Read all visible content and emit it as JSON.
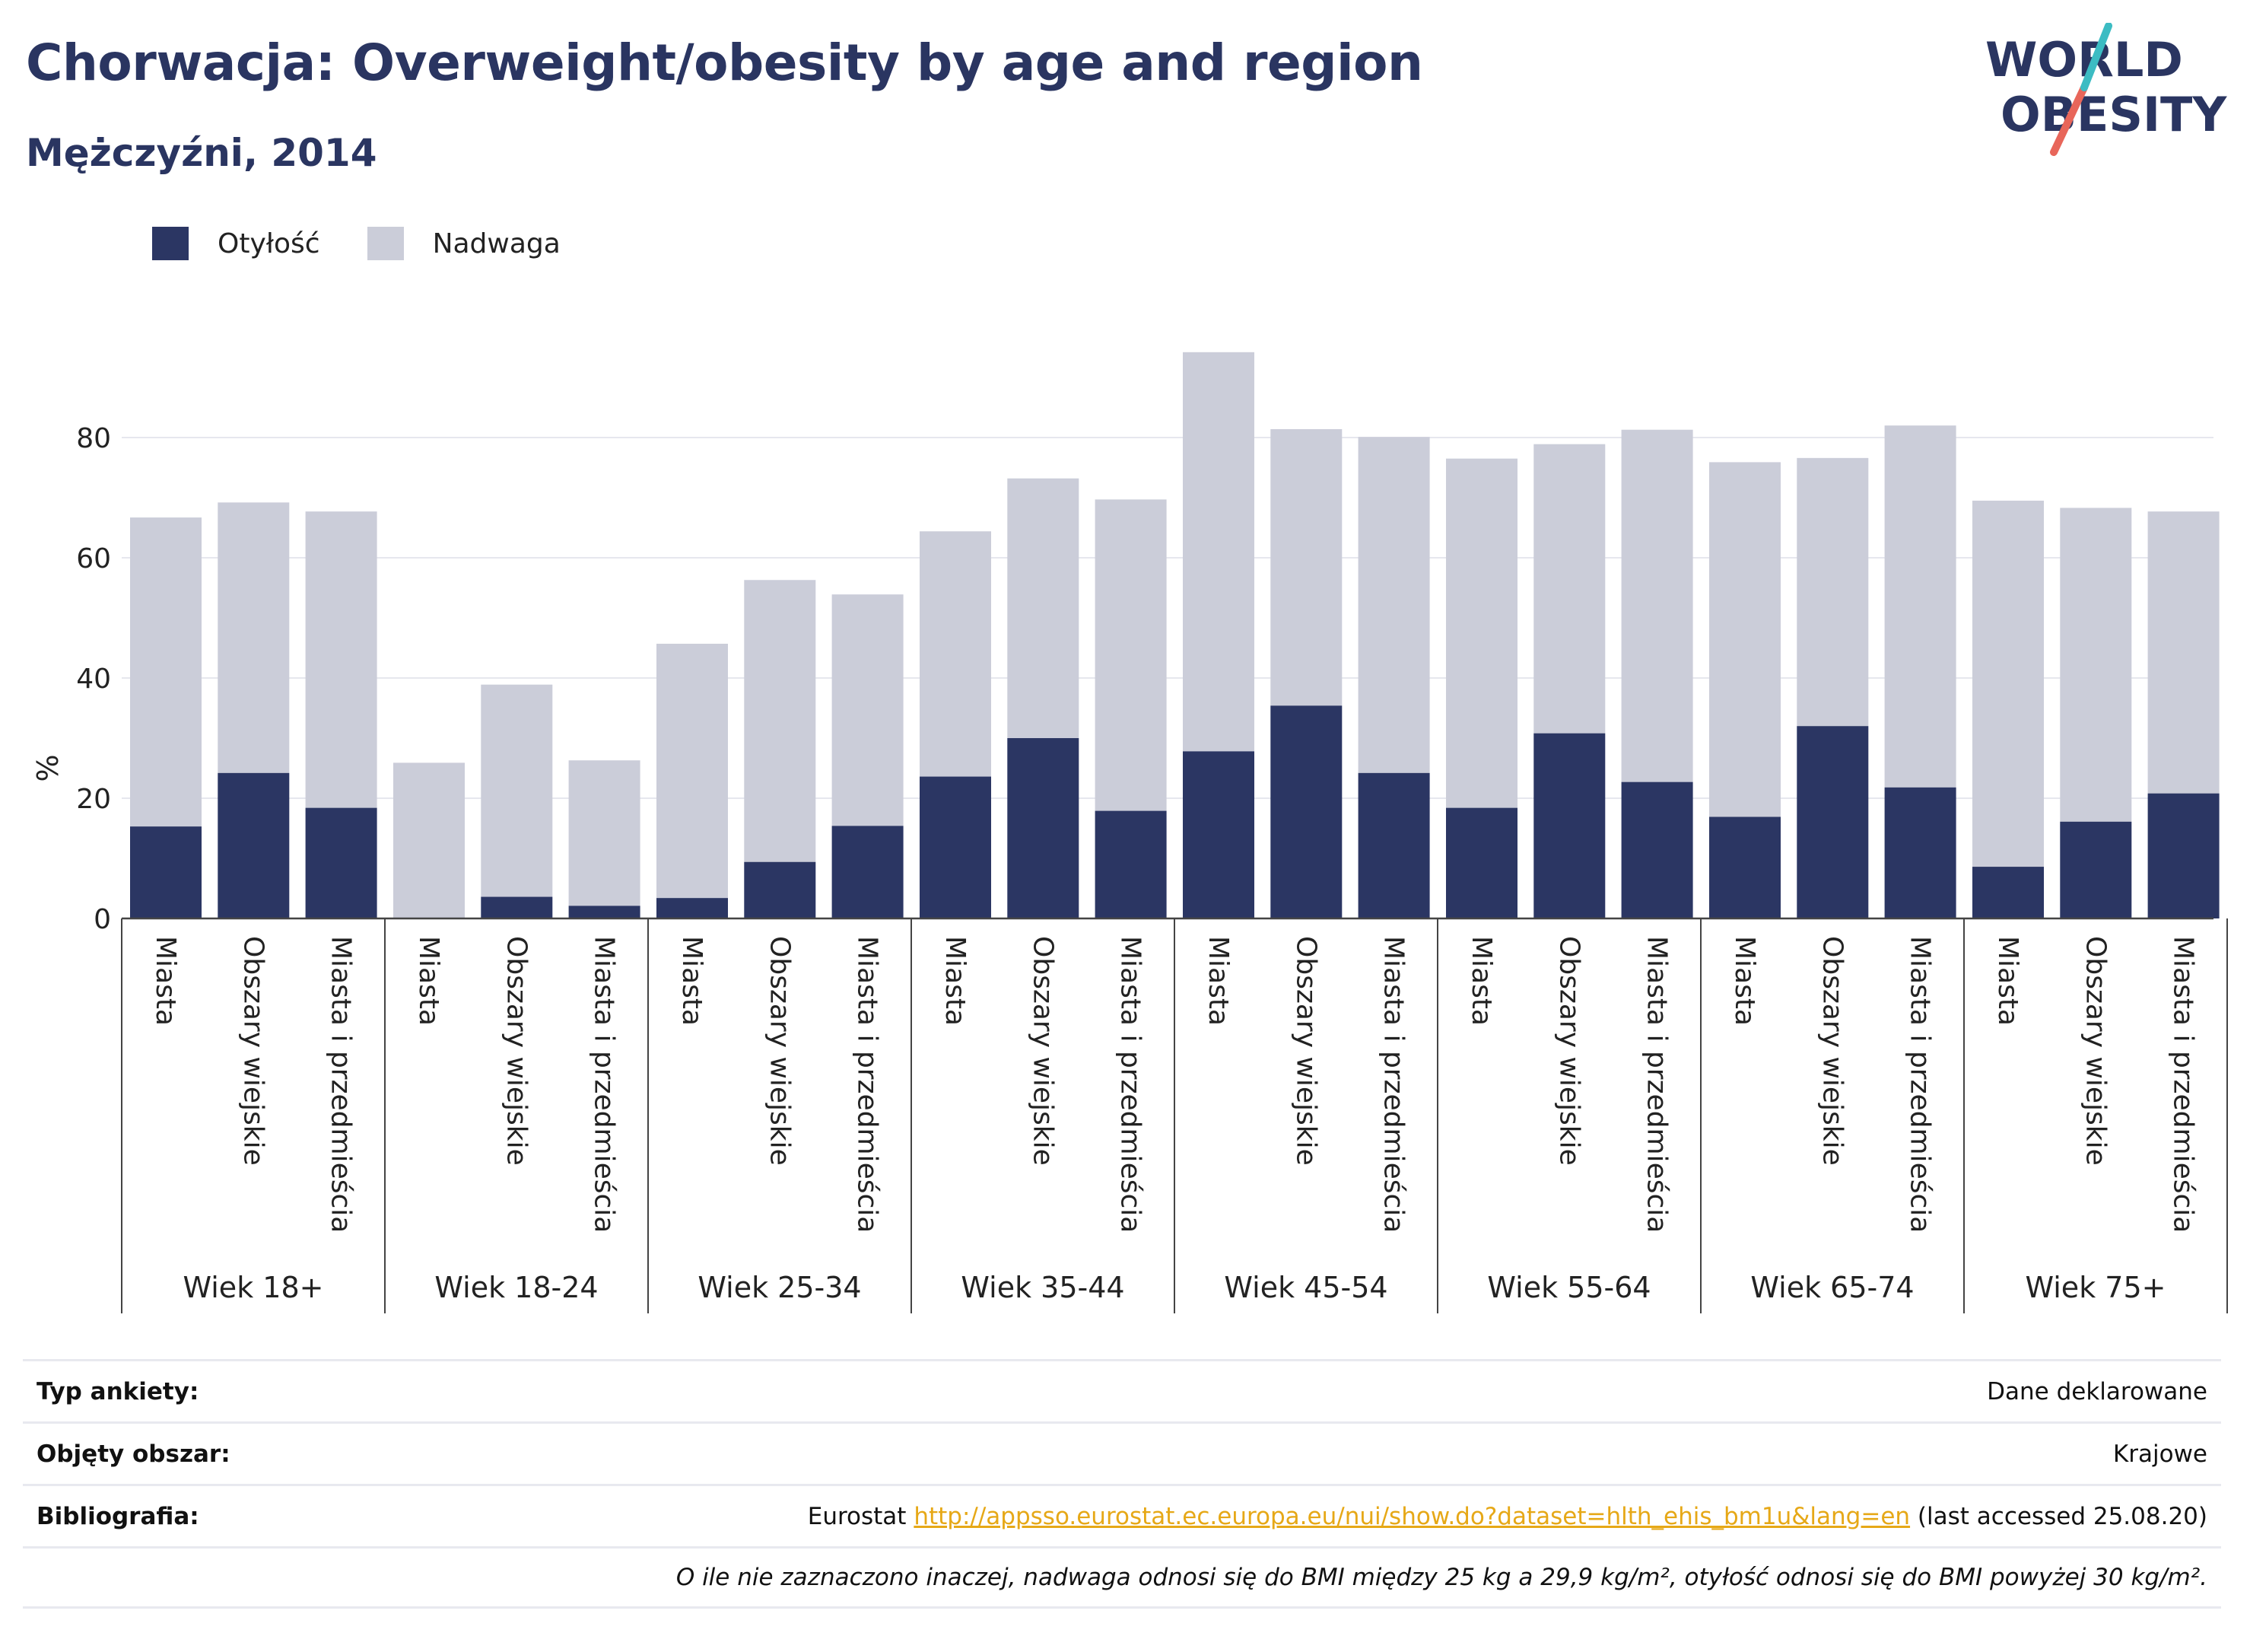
{
  "header": {
    "title": "Chorwacja: Overweight/obesity by age and region",
    "subtitle": "Mężczyźni, 2014"
  },
  "logo": {
    "line1": "WORLD",
    "line2": "OBESITY"
  },
  "colors": {
    "obesity": "#2b3663",
    "overweight": "#cbcdd9",
    "title": "#2a3561",
    "link": "#e6a817"
  },
  "legend": [
    {
      "label": "Otyłość",
      "color": "#2b3663"
    },
    {
      "label": "Nadwaga",
      "color": "#cbcdd9"
    }
  ],
  "chart_data": {
    "type": "bar",
    "stacked": true,
    "ylabel": "%",
    "ylim": [
      0,
      95
    ],
    "yticks": [
      0,
      20,
      40,
      60,
      80
    ],
    "grid": true,
    "legend_position": "top-left",
    "groups": [
      "Wiek 18+",
      "Wiek 18-24",
      "Wiek 25-34",
      "Wiek 35-44",
      "Wiek 45-54",
      "Wiek 55-64",
      "Wiek 65-74",
      "Wiek 75+"
    ],
    "categories": [
      "Miasta",
      "Obszary wiejskie",
      "Miasta i przedmieścia"
    ],
    "series": [
      {
        "name": "Otyłość",
        "values": [
          [
            15.3,
            24.2,
            18.4
          ],
          [
            0,
            3.6,
            2.1
          ],
          [
            3.4,
            9.4,
            15.4
          ],
          [
            23.6,
            30.0,
            17.9
          ],
          [
            27.8,
            35.4,
            24.2
          ],
          [
            18.4,
            30.8,
            22.7
          ],
          [
            16.9,
            32.0,
            21.8
          ],
          [
            8.6,
            16.1,
            20.8
          ]
        ]
      },
      {
        "name": "Nadwaga",
        "values": [
          [
            51.4,
            45.0,
            49.3
          ],
          [
            25.9,
            35.3,
            24.2
          ],
          [
            42.3,
            46.9,
            38.5
          ],
          [
            40.8,
            43.2,
            51.8
          ],
          [
            66.4,
            46.0,
            55.9
          ],
          [
            58.1,
            48.1,
            58.6
          ],
          [
            59.0,
            44.6,
            60.2
          ],
          [
            60.9,
            52.2,
            46.9
          ]
        ]
      }
    ]
  },
  "footer": {
    "survey_label": "Typ ankiety:",
    "survey_value": "Dane deklarowane",
    "area_label": "Objęty obszar:",
    "area_value": "Krajowe",
    "biblio_label": "Bibliografia:",
    "biblio_prefix": "Eurostat",
    "biblio_link": "http://appsso.eurostat.ec.europa.eu/nui/show.do?dataset=hlth_ehis_bm1u&lang=en",
    "biblio_suffix": "(last accessed 25.08.20)",
    "note": "O ile nie zaznaczono inaczej, nadwaga odnosi się do BMI między 25 kg a 29,9 kg/m², otyłość odnosi się do BMI powyżej 30 kg/m²."
  }
}
